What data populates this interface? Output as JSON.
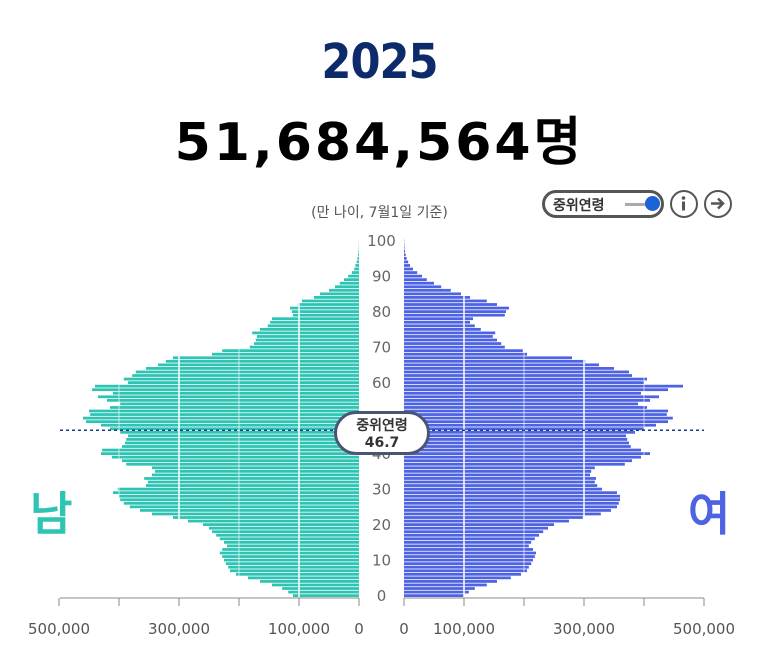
{
  "header": {
    "year": "2025",
    "total": "51,684,564명",
    "note": "(만 나이, 7월1일 기준)"
  },
  "controls": {
    "median_toggle_label": "중위연령",
    "median_toggle_on": true
  },
  "labels": {
    "male": "남",
    "female": "여"
  },
  "median": {
    "label": "중위연령",
    "value": "46.7"
  },
  "colors": {
    "male": "#2ec4b3",
    "female": "#4d63e3",
    "year": "#0d2a6b",
    "median_line": "#1a3a8a"
  },
  "chart_data": {
    "type": "bar",
    "orientation": "horizontal",
    "subtype": "population-pyramid",
    "y_label_ticks": [
      0,
      10,
      20,
      30,
      40,
      50,
      60,
      70,
      80,
      90,
      100
    ],
    "x_ticks_male": [
      "500,000",
      "300,000",
      "100,000",
      "0"
    ],
    "x_ticks_female": [
      "0",
      "100,000",
      "300,000",
      "500,000"
    ],
    "xlim": [
      0,
      500000
    ],
    "median_age": 46.7,
    "ages": [
      0,
      1,
      2,
      3,
      4,
      5,
      6,
      7,
      8,
      9,
      10,
      11,
      12,
      13,
      14,
      15,
      16,
      17,
      18,
      19,
      20,
      21,
      22,
      23,
      24,
      25,
      26,
      27,
      28,
      29,
      30,
      31,
      32,
      33,
      34,
      35,
      36,
      37,
      38,
      39,
      40,
      41,
      42,
      43,
      44,
      45,
      46,
      47,
      48,
      49,
      50,
      51,
      52,
      53,
      54,
      55,
      56,
      57,
      58,
      59,
      60,
      61,
      62,
      63,
      64,
      65,
      66,
      67,
      68,
      69,
      70,
      71,
      72,
      73,
      74,
      75,
      76,
      77,
      78,
      79,
      80,
      81,
      82,
      83,
      84,
      85,
      86,
      87,
      88,
      89,
      90,
      91,
      92,
      93,
      94,
      95,
      96,
      97,
      98,
      99,
      100
    ],
    "series": [
      {
        "name": "남",
        "values": [
          110000,
          118000,
          128000,
          145000,
          165000,
          185000,
          205000,
          215000,
          218000,
          222000,
          225000,
          228000,
          232000,
          228000,
          220000,
          225000,
          232000,
          238000,
          245000,
          250000,
          260000,
          285000,
          310000,
          345000,
          365000,
          382000,
          392000,
          398000,
          400000,
          410000,
          402000,
          355000,
          352000,
          358000,
          345000,
          340000,
          345000,
          388000,
          395000,
          412000,
          430000,
          428000,
          395000,
          390000,
          388000,
          385000,
          398000,
          415000,
          430000,
          455000,
          460000,
          448000,
          450000,
          415000,
          398000,
          420000,
          435000,
          410000,
          445000,
          440000,
          385000,
          392000,
          378000,
          372000,
          355000,
          335000,
          322000,
          310000,
          245000,
          228000,
          182000,
          175000,
          172000,
          170000,
          178000,
          165000,
          152000,
          148000,
          145000,
          110000,
          112000,
          115000,
          102000,
          95000,
          75000,
          65000,
          50000,
          40000,
          32000,
          25000,
          18000,
          12000,
          8000,
          6000,
          4000,
          2500,
          1500,
          900,
          500,
          300,
          200
        ]
      },
      {
        "name": "여",
        "values": [
          100000,
          108000,
          118000,
          138000,
          155000,
          178000,
          195000,
          205000,
          208000,
          212000,
          215000,
          218000,
          220000,
          215000,
          208000,
          212000,
          218000,
          225000,
          232000,
          240000,
          250000,
          275000,
          298000,
          328000,
          345000,
          355000,
          358000,
          360000,
          360000,
          355000,
          330000,
          322000,
          318000,
          320000,
          310000,
          312000,
          318000,
          368000,
          380000,
          395000,
          410000,
          395000,
          378000,
          375000,
          372000,
          370000,
          385000,
          400000,
          420000,
          440000,
          448000,
          438000,
          440000,
          405000,
          390000,
          410000,
          425000,
          395000,
          440000,
          465000,
          400000,
          405000,
          380000,
          375000,
          350000,
          325000,
          302000,
          280000,
          205000,
          198000,
          168000,
          162000,
          155000,
          148000,
          152000,
          128000,
          118000,
          110000,
          115000,
          168000,
          170000,
          175000,
          155000,
          138000,
          110000,
          95000,
          78000,
          62000,
          50000,
          38000,
          30000,
          22000,
          15000,
          10000,
          7000,
          4500,
          2800,
          1700,
          1000,
          600,
          400
        ]
      }
    ]
  }
}
